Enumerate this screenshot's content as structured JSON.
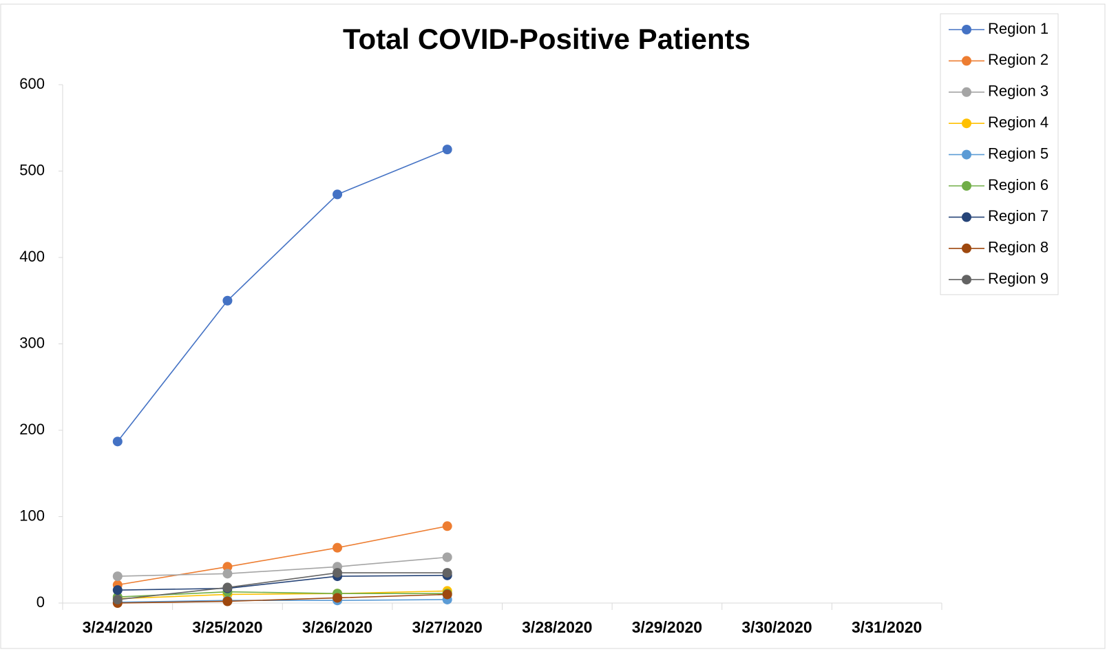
{
  "chart_data": {
    "type": "line",
    "title": "Total COVID-Positive Patients",
    "categories": [
      "3/24/2020",
      "3/25/2020",
      "3/26/2020",
      "3/27/2020",
      "3/28/2020",
      "3/29/2020",
      "3/30/2020",
      "3/31/2020"
    ],
    "series": [
      {
        "name": "Region 1",
        "color": "#4472c4",
        "values": [
          187,
          350,
          473,
          525,
          null,
          null,
          null,
          null
        ]
      },
      {
        "name": "Region 2",
        "color": "#ed7d31",
        "values": [
          21,
          42,
          64,
          89,
          null,
          null,
          null,
          null
        ]
      },
      {
        "name": "Region 3",
        "color": "#a5a5a5",
        "values": [
          31,
          34,
          42,
          53,
          null,
          null,
          null,
          null
        ]
      },
      {
        "name": "Region 4",
        "color": "#ffc000",
        "values": [
          5,
          10,
          11,
          14,
          null,
          null,
          null,
          null
        ]
      },
      {
        "name": "Region 5",
        "color": "#5b9bd5",
        "values": [
          1,
          3,
          3,
          4,
          null,
          null,
          null,
          null
        ]
      },
      {
        "name": "Region 6",
        "color": "#70ad47",
        "values": [
          7,
          13,
          11,
          11,
          null,
          null,
          null,
          null
        ]
      },
      {
        "name": "Region 7",
        "color": "#264478",
        "values": [
          15,
          17,
          31,
          32,
          null,
          null,
          null,
          null
        ]
      },
      {
        "name": "Region 8",
        "color": "#9e480e",
        "values": [
          0,
          2,
          6,
          10,
          null,
          null,
          null,
          null
        ]
      },
      {
        "name": "Region 9",
        "color": "#636363",
        "values": [
          4,
          18,
          35,
          35,
          null,
          null,
          null,
          null
        ]
      }
    ],
    "ylim": [
      0,
      600
    ],
    "yticks": [
      0,
      100,
      200,
      300,
      400,
      500,
      600
    ],
    "grid": false,
    "legend": "right"
  }
}
